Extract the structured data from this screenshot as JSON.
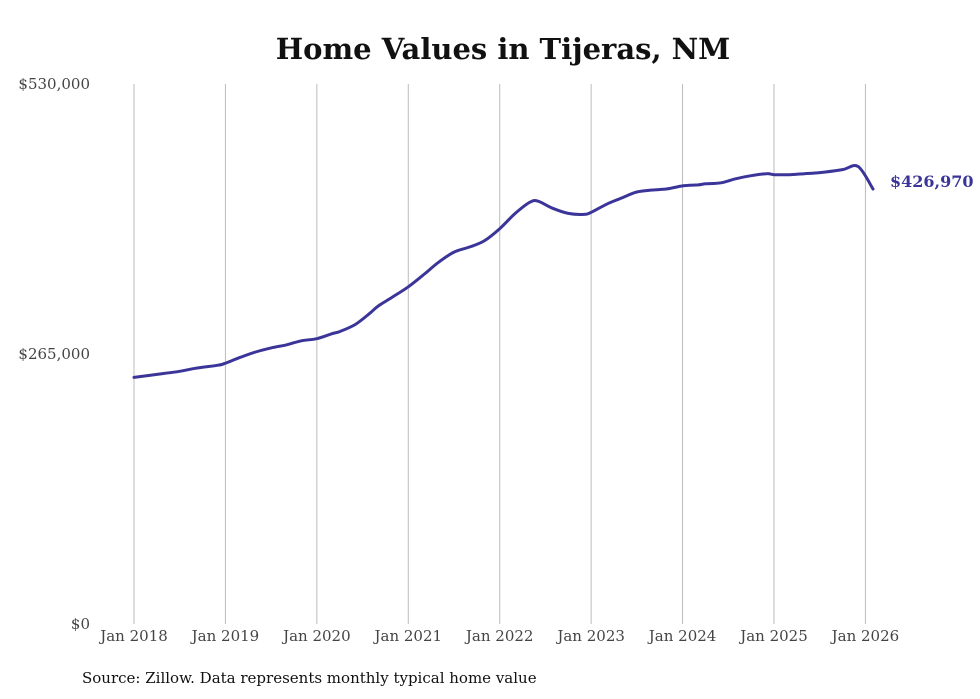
{
  "chart_data": {
    "type": "line",
    "title": "Home Values in Tijeras, NM",
    "xlabel": "",
    "ylabel": "",
    "ylim": [
      0,
      530000
    ],
    "yticks": [
      {
        "value": 0,
        "label": "$0"
      },
      {
        "value": 265000,
        "label": "$265,000"
      },
      {
        "value": 530000,
        "label": "$530,000"
      }
    ],
    "xlim": [
      2018.0,
      2026.083
    ],
    "xticks": [
      {
        "value": 2018,
        "label": "Jan 2018"
      },
      {
        "value": 2019,
        "label": "Jan 2019"
      },
      {
        "value": 2020,
        "label": "Jan 2020"
      },
      {
        "value": 2021,
        "label": "Jan 2021"
      },
      {
        "value": 2022,
        "label": "Jan 2022"
      },
      {
        "value": 2023,
        "label": "Jan 2023"
      },
      {
        "value": 2024,
        "label": "Jan 2024"
      },
      {
        "value": 2025,
        "label": "Jan 2025"
      },
      {
        "value": 2026,
        "label": "Jan 2026"
      }
    ],
    "grid": "vertical",
    "series": [
      {
        "name": "Typical home value",
        "color": "#3b3599",
        "x": [
          2018.0,
          2018.25,
          2018.5,
          2018.67,
          2018.92,
          2019.0,
          2019.17,
          2019.33,
          2019.5,
          2019.67,
          2019.83,
          2020.0,
          2020.17,
          2020.25,
          2020.42,
          2020.58,
          2020.67,
          2020.83,
          2021.0,
          2021.17,
          2021.33,
          2021.5,
          2021.67,
          2021.83,
          2022.0,
          2022.17,
          2022.33,
          2022.42,
          2022.58,
          2022.75,
          2022.92,
          2023.0,
          2023.17,
          2023.33,
          2023.5,
          2023.67,
          2023.83,
          2024.0,
          2024.17,
          2024.25,
          2024.42,
          2024.58,
          2024.75,
          2024.92,
          2025.0,
          2025.17,
          2025.33,
          2025.5,
          2025.75,
          2025.92,
          2026.083
        ],
        "values": [
          242000,
          245000,
          248000,
          251000,
          254000,
          256000,
          262000,
          267000,
          271000,
          274000,
          278000,
          280000,
          285000,
          287000,
          294000,
          305000,
          312000,
          321000,
          331000,
          343000,
          355000,
          365000,
          370000,
          376000,
          388000,
          403000,
          414000,
          415000,
          408000,
          403000,
          402000,
          404000,
          412000,
          418000,
          424000,
          426000,
          427000,
          430000,
          431000,
          432000,
          433000,
          437000,
          440000,
          442000,
          441000,
          441000,
          442000,
          443000,
          446000,
          449000,
          426970
        ]
      }
    ],
    "end_label": "$426,970",
    "source": "Source: Zillow. Data represents monthly typical home value"
  }
}
